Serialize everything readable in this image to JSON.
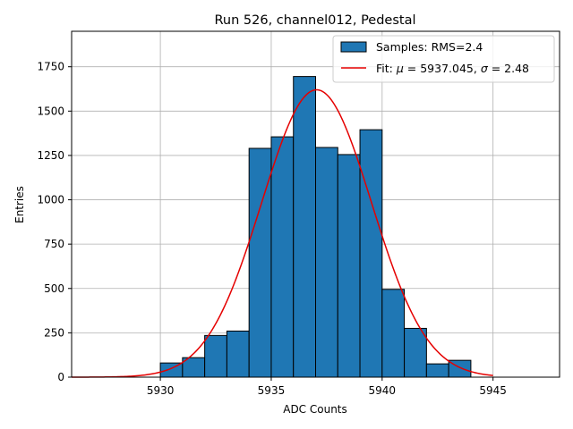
{
  "chart_data": {
    "type": "bar",
    "title": "Run 526, channel012, Pedestal",
    "xlabel": "ADC Counts",
    "ylabel": "Entries",
    "xlim": [
      5926,
      5948
    ],
    "ylim": [
      0,
      1950
    ],
    "grid": true,
    "xticks": [
      5930,
      5935,
      5940,
      5945
    ],
    "yticks": [
      0,
      250,
      500,
      750,
      1000,
      1250,
      1500,
      1750
    ],
    "bin_width": 1,
    "bin_edges_start": [
      5930,
      5931,
      5932,
      5933,
      5934,
      5935,
      5936,
      5937,
      5938,
      5939,
      5940,
      5941,
      5942,
      5943
    ],
    "values": [
      80,
      110,
      235,
      260,
      1290,
      1355,
      1695,
      1295,
      1255,
      1395,
      495,
      275,
      75,
      95
    ],
    "bar_color": "#1f77b4",
    "bar_edge_color": "#000000",
    "fit": {
      "mu": 5937.045,
      "sigma": 2.48,
      "amplitude": 1620,
      "x_range": [
        5926,
        5945
      ],
      "color": "#e50000"
    },
    "legend": {
      "placement": "top-right",
      "entries": [
        {
          "label": "Samples: RMS=2.4",
          "kind": "patch",
          "color": "#1f77b4"
        },
        {
          "label_prefix": "Fit: ",
          "mu_symbol": "μ",
          "mu_text": " = 5937.045, ",
          "sigma_symbol": "σ",
          "sigma_text": " = 2.48",
          "kind": "line",
          "color": "#e50000"
        }
      ]
    }
  }
}
